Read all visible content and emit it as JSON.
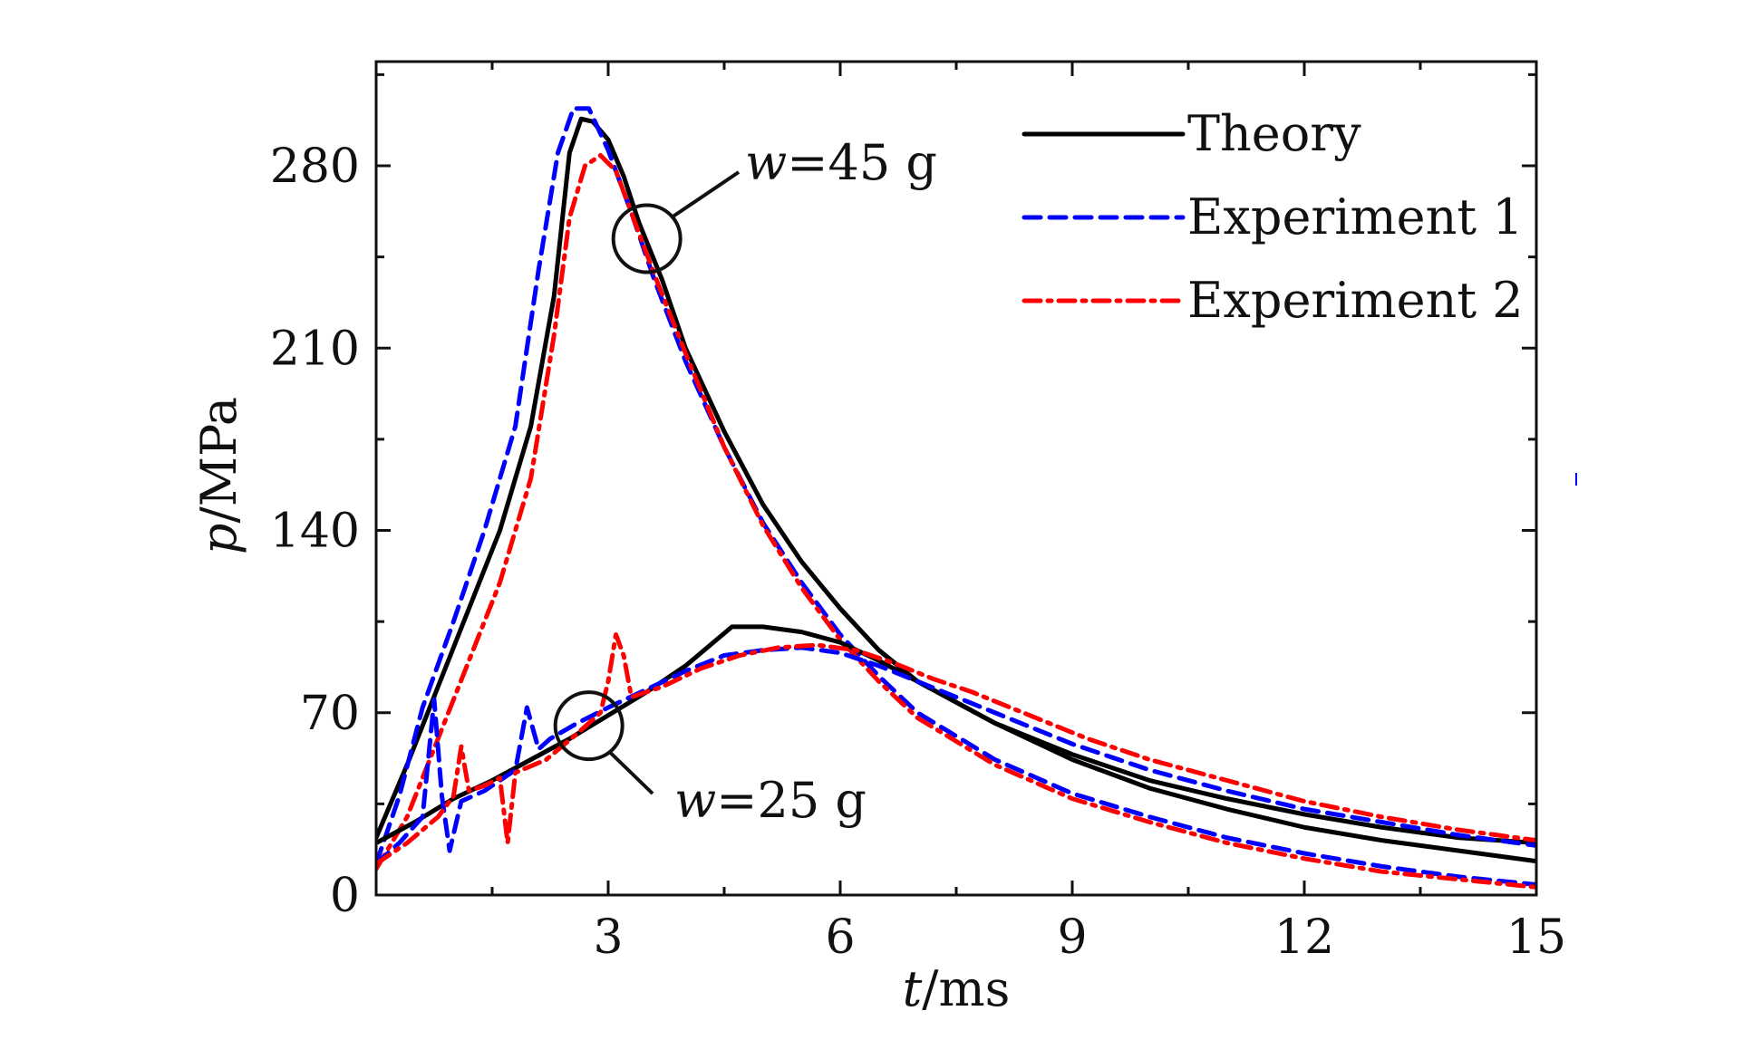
{
  "chart_data": {
    "type": "line",
    "xlabel": {
      "var": "t",
      "unit": "/ms"
    },
    "ylabel": {
      "var": "p",
      "unit": "/MPa"
    },
    "xlim": [
      0,
      15
    ],
    "ylim": [
      0,
      320
    ],
    "xticks": [
      3,
      6,
      9,
      12,
      15
    ],
    "yticks": [
      0,
      70,
      140,
      210,
      280
    ],
    "grid": false,
    "legend": {
      "placement": "top-right",
      "entries": [
        {
          "label": "Theory",
          "series": "theory",
          "color": "#000000",
          "dash": "solid"
        },
        {
          "label": "Experiment 1",
          "series": "exp1",
          "color": "#0000ff",
          "dash": "dashed"
        },
        {
          "label": "Experiment 2",
          "series": "exp2",
          "color": "#ff0000",
          "dash": "dash-dot"
        }
      ]
    },
    "annotations": [
      {
        "var": "w",
        "text": "=45 g",
        "target": "w45",
        "circle_at": [
          3.5,
          252
        ]
      },
      {
        "var": "w",
        "text": "=25 g",
        "target": "w25",
        "circle_at": [
          2.75,
          65
        ]
      }
    ],
    "series": [
      {
        "name": "Theory",
        "group": "w=45 g",
        "style": "theory",
        "points": [
          [
            0,
            22
          ],
          [
            0.4,
            50
          ],
          [
            0.8,
            80
          ],
          [
            1.2,
            110
          ],
          [
            1.6,
            140
          ],
          [
            2.0,
            180
          ],
          [
            2.3,
            230
          ],
          [
            2.5,
            285
          ],
          [
            2.65,
            298
          ],
          [
            2.8,
            297
          ],
          [
            3.0,
            290
          ],
          [
            3.2,
            276
          ],
          [
            3.4,
            258
          ],
          [
            3.7,
            236
          ],
          [
            4.0,
            210
          ],
          [
            4.5,
            178
          ],
          [
            5.0,
            150
          ],
          [
            5.5,
            128
          ],
          [
            6.0,
            110
          ],
          [
            6.5,
            94
          ],
          [
            7.0,
            82
          ],
          [
            8.0,
            66
          ],
          [
            9.0,
            54
          ],
          [
            10.0,
            44
          ],
          [
            11.0,
            37
          ],
          [
            12.0,
            31
          ],
          [
            13.0,
            26
          ],
          [
            14.0,
            22
          ],
          [
            15.0,
            20
          ]
        ]
      },
      {
        "name": "Experiment 1",
        "group": "w=45 g",
        "style": "exp1",
        "points": [
          [
            0,
            12
          ],
          [
            0.3,
            38
          ],
          [
            0.6,
            72
          ],
          [
            1.0,
            105
          ],
          [
            1.4,
            140
          ],
          [
            1.8,
            180
          ],
          [
            2.1,
            240
          ],
          [
            2.35,
            285
          ],
          [
            2.55,
            302
          ],
          [
            2.75,
            302
          ],
          [
            3.0,
            286
          ],
          [
            3.3,
            262
          ],
          [
            3.6,
            236
          ],
          [
            4.0,
            205
          ],
          [
            4.5,
            172
          ],
          [
            5.0,
            143
          ],
          [
            5.5,
            120
          ],
          [
            6.0,
            100
          ],
          [
            6.5,
            84
          ],
          [
            7.0,
            70
          ],
          [
            8.0,
            52
          ],
          [
            9.0,
            39
          ],
          [
            10.0,
            30
          ],
          [
            11.0,
            22
          ],
          [
            12.0,
            16
          ],
          [
            13.0,
            11
          ],
          [
            14.0,
            7
          ],
          [
            15.0,
            4
          ]
        ]
      },
      {
        "name": "Experiment 2",
        "group": "w=45 g",
        "style": "exp2",
        "points": [
          [
            0,
            10
          ],
          [
            0.4,
            30
          ],
          [
            0.8,
            60
          ],
          [
            1.2,
            90
          ],
          [
            1.6,
            120
          ],
          [
            2.0,
            160
          ],
          [
            2.3,
            215
          ],
          [
            2.5,
            260
          ],
          [
            2.7,
            280
          ],
          [
            2.9,
            284
          ],
          [
            3.1,
            278
          ],
          [
            3.3,
            262
          ],
          [
            3.6,
            238
          ],
          [
            4.0,
            208
          ],
          [
            4.5,
            172
          ],
          [
            5.0,
            142
          ],
          [
            5.5,
            118
          ],
          [
            6.0,
            98
          ],
          [
            6.5,
            82
          ],
          [
            7.0,
            68
          ],
          [
            8.0,
            50
          ],
          [
            9.0,
            37
          ],
          [
            10.0,
            28
          ],
          [
            11.0,
            20
          ],
          [
            12.0,
            14
          ],
          [
            13.0,
            9
          ],
          [
            14.0,
            6
          ],
          [
            15.0,
            3
          ]
        ]
      },
      {
        "name": "Theory",
        "group": "w=25 g",
        "style": "theory",
        "points": [
          [
            0,
            20
          ],
          [
            0.5,
            28
          ],
          [
            1.0,
            37
          ],
          [
            1.5,
            44
          ],
          [
            2.0,
            52
          ],
          [
            2.5,
            60
          ],
          [
            3.0,
            69
          ],
          [
            3.5,
            78
          ],
          [
            4.0,
            88
          ],
          [
            4.6,
            103
          ],
          [
            5.0,
            103
          ],
          [
            5.5,
            101
          ],
          [
            6.0,
            97
          ],
          [
            6.5,
            90
          ],
          [
            7.0,
            82
          ],
          [
            7.5,
            74
          ],
          [
            8.0,
            66
          ],
          [
            8.5,
            59
          ],
          [
            9.0,
            52
          ],
          [
            10.0,
            41
          ],
          [
            11.0,
            33
          ],
          [
            12.0,
            26
          ],
          [
            13.0,
            21
          ],
          [
            14.0,
            17
          ],
          [
            15.0,
            13
          ]
        ]
      },
      {
        "name": "Experiment 1",
        "group": "w=25 g",
        "style": "exp1",
        "points": [
          [
            0,
            12
          ],
          [
            0.3,
            20
          ],
          [
            0.6,
            30
          ],
          [
            0.75,
            75
          ],
          [
            0.85,
            38
          ],
          [
            0.95,
            17
          ],
          [
            1.1,
            36
          ],
          [
            1.4,
            40
          ],
          [
            1.8,
            48
          ],
          [
            1.95,
            72
          ],
          [
            2.1,
            56
          ],
          [
            2.25,
            60
          ],
          [
            2.6,
            66
          ],
          [
            3.0,
            72
          ],
          [
            3.5,
            79
          ],
          [
            4.0,
            86
          ],
          [
            4.5,
            92
          ],
          [
            5.0,
            94
          ],
          [
            5.5,
            95
          ],
          [
            6.0,
            93
          ],
          [
            6.5,
            88
          ],
          [
            7.0,
            82
          ],
          [
            7.5,
            76
          ],
          [
            8.0,
            70
          ],
          [
            8.5,
            64
          ],
          [
            9.0,
            58
          ],
          [
            10.0,
            48
          ],
          [
            11.0,
            40
          ],
          [
            12.0,
            33
          ],
          [
            13.0,
            28
          ],
          [
            14.0,
            23
          ],
          [
            15.0,
            19
          ]
        ]
      },
      {
        "name": "Experiment 2",
        "group": "w=25 g",
        "style": "exp2",
        "points": [
          [
            0,
            12
          ],
          [
            0.4,
            20
          ],
          [
            0.8,
            30
          ],
          [
            1.0,
            38
          ],
          [
            1.1,
            57
          ],
          [
            1.2,
            40
          ],
          [
            1.4,
            42
          ],
          [
            1.6,
            45
          ],
          [
            1.7,
            20
          ],
          [
            1.8,
            47
          ],
          [
            2.2,
            52
          ],
          [
            2.6,
            62
          ],
          [
            2.9,
            70
          ],
          [
            3.0,
            82
          ],
          [
            3.1,
            100
          ],
          [
            3.2,
            92
          ],
          [
            3.3,
            76
          ],
          [
            3.7,
            80
          ],
          [
            4.2,
            87
          ],
          [
            4.7,
            92
          ],
          [
            5.2,
            95
          ],
          [
            5.7,
            96
          ],
          [
            6.2,
            94
          ],
          [
            6.7,
            89
          ],
          [
            7.2,
            83
          ],
          [
            7.7,
            78
          ],
          [
            8.2,
            72
          ],
          [
            8.7,
            66
          ],
          [
            9.2,
            60
          ],
          [
            10.0,
            52
          ],
          [
            11.0,
            44
          ],
          [
            12.0,
            36
          ],
          [
            13.0,
            30
          ],
          [
            14.0,
            25
          ],
          [
            15.0,
            21
          ]
        ]
      }
    ]
  }
}
